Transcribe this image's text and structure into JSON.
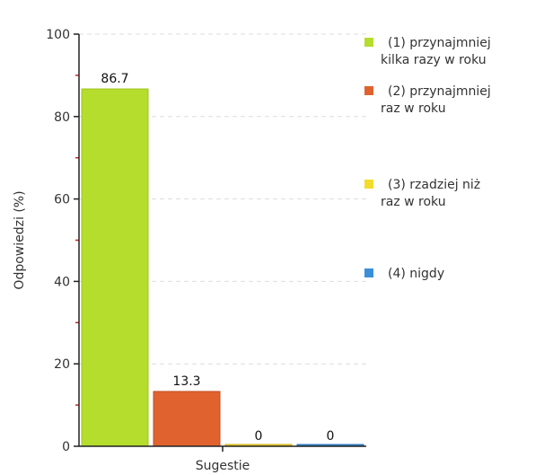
{
  "chart_data": {
    "type": "bar",
    "xlabel": "Sugestie",
    "ylabel": "Odpowiedzi (%)",
    "ylim": [
      0,
      100
    ],
    "yticks": [
      0,
      20,
      40,
      60,
      80,
      100
    ],
    "grid": "horizontal dashed",
    "legend_position": "right",
    "series": [
      {
        "name": "(1) przynajmniej kilka razy w roku",
        "legend_lines": [
          "(1) przynajmniej",
          "kilka razy w roku"
        ],
        "value": 86.7,
        "label": "86.7",
        "color": "#b5dd2d",
        "edge": "#9fc51f"
      },
      {
        "name": "(2) przynajmniej raz w roku",
        "legend_lines": [
          "(2) przynajmniej",
          "raz w roku"
        ],
        "value": 13.3,
        "label": "13.3",
        "color": "#e0632f",
        "edge": "#c24e1e"
      },
      {
        "name": "(3) rzadziej niż raz w roku",
        "legend_lines": [
          "(3) rzadziej niż",
          "raz w roku"
        ],
        "value": 0,
        "label": "0",
        "color": "#f2dc2c",
        "edge": "#c9a914"
      },
      {
        "name": "(4) nigdy",
        "legend_lines": [
          "(4) nigdy"
        ],
        "value": 0,
        "label": "0",
        "color": "#3b8fd9",
        "edge": "#2a6fb0"
      }
    ]
  }
}
